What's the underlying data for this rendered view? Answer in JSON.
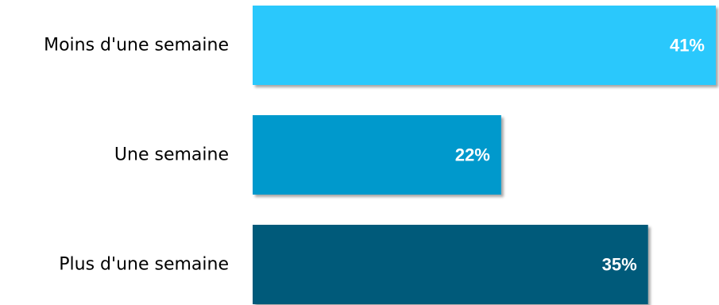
{
  "chart_data": {
    "type": "bar",
    "orientation": "horizontal",
    "categories": [
      "Moins d'une semaine",
      "Une semaine",
      "Plus d'une semaine"
    ],
    "values": [
      41,
      22,
      35
    ],
    "value_labels": [
      "41%",
      "22%",
      "35%"
    ],
    "unit": "%",
    "xlim": [
      0,
      41
    ],
    "grid": false,
    "legend": "none",
    "colors": [
      "#2bc8fc",
      "#0099cc",
      "#005a7a"
    ]
  }
}
